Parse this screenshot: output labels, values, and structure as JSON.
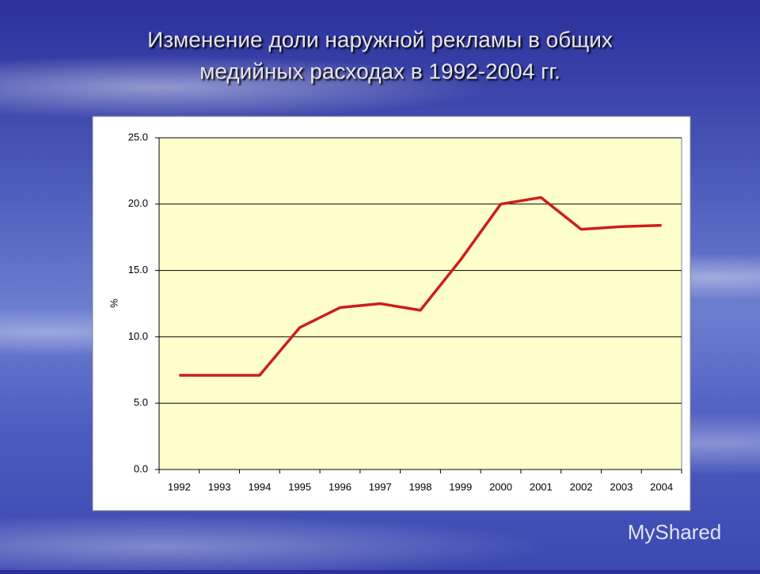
{
  "chart_data": {
    "type": "line",
    "title": "Изменение доли наружной рекламы в общих медийных расходах в 1992-2004 гг.",
    "y_label": "%",
    "categories": [
      "1992",
      "1993",
      "1994",
      "1995",
      "1996",
      "1997",
      "1998",
      "1999",
      "2000",
      "2001",
      "2002",
      "2003",
      "2004"
    ],
    "series": [
      {
        "color": "#cc1f1a",
        "values": [
          7.1,
          7.1,
          7.1,
          10.7,
          12.2,
          12.5,
          12.0,
          15.8,
          20.0,
          20.5,
          18.1,
          18.3,
          18.4
        ]
      }
    ],
    "ylim": [
      0,
      25
    ],
    "yticks": [
      {
        "value": 0,
        "label": "0.0"
      },
      {
        "value": 5,
        "label": "5.0"
      },
      {
        "value": 10,
        "label": "10.0"
      },
      {
        "value": 15,
        "label": "15.0"
      },
      {
        "value": 20,
        "label": "20.0"
      },
      {
        "value": 25,
        "label": "25.0"
      }
    ],
    "grid": true,
    "plot_background": "#ffffcc"
  },
  "watermark": "MyShared"
}
